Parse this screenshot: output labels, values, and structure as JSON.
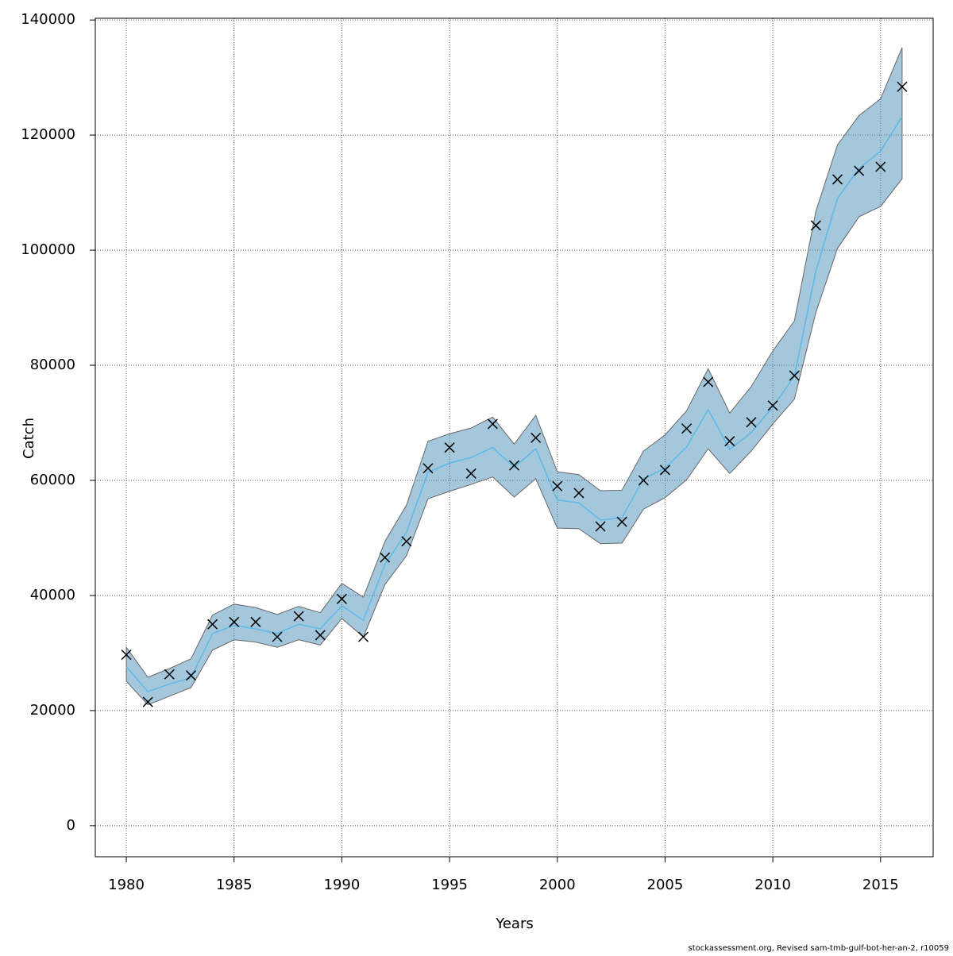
{
  "chart_data": {
    "type": "line",
    "x_label": "Years",
    "y_label": "Catch",
    "footer": "stockassessment.org, Revised  sam-tmb-gulf-bot-her-an-2, r10059",
    "x": [
      1980,
      1981,
      1982,
      1983,
      1984,
      1985,
      1986,
      1987,
      1988,
      1989,
      1990,
      1991,
      1992,
      1993,
      1994,
      1995,
      1996,
      1997,
      1998,
      1999,
      2000,
      2001,
      2002,
      2003,
      2004,
      2005,
      2006,
      2007,
      2008,
      2009,
      2010,
      2011,
      2012,
      2013,
      2014,
      2015,
      2016
    ],
    "estimate": {
      "color": "#5bb8e8",
      "values": [
        27600,
        23300,
        24600,
        25700,
        33400,
        34800,
        34200,
        33400,
        35000,
        34200,
        38200,
        35700,
        45400,
        51000,
        61400,
        63000,
        64000,
        65700,
        62300,
        65500,
        56600,
        56100,
        53100,
        53500,
        60300,
        62100,
        65800,
        72300,
        65400,
        68300,
        72800,
        78100,
        96400,
        109000,
        114200,
        117200,
        123200
      ]
    },
    "band": {
      "color": "#4a90b8",
      "upper": [
        31000,
        25800,
        27300,
        29000,
        36600,
        38500,
        37900,
        36700,
        38100,
        37000,
        42100,
        39700,
        49400,
        55700,
        66800,
        68100,
        69100,
        71000,
        66300,
        71300,
        61500,
        61000,
        58200,
        58300,
        65100,
        67900,
        72100,
        79400,
        71700,
        76300,
        82500,
        87700,
        106800,
        118300,
        123400,
        126300,
        135200
      ],
      "lower": [
        25100,
        21000,
        22500,
        24000,
        30500,
        32300,
        31900,
        31000,
        32300,
        31400,
        36000,
        32800,
        41900,
        46900,
        56800,
        58100,
        59300,
        60600,
        57100,
        60300,
        51700,
        51600,
        49000,
        49100,
        55000,
        57000,
        60100,
        65500,
        61200,
        65100,
        69800,
        74100,
        89200,
        100300,
        105800,
        107600,
        112400
      ]
    },
    "observed": {
      "color": "#000000",
      "values": [
        29700,
        21500,
        26300,
        26100,
        35000,
        35400,
        35400,
        32800,
        36400,
        33100,
        39400,
        32800,
        46600,
        49400,
        62100,
        65700,
        61200,
        69800,
        62600,
        67400,
        59000,
        57800,
        52000,
        52800,
        60000,
        61800,
        69000,
        77100,
        66800,
        70100,
        73000,
        78200,
        104300,
        112300,
        113800,
        114500,
        128400
      ]
    },
    "xlim": [
      1978.56,
      2017.44
    ],
    "ylim": [
      -5400,
      140300
    ],
    "xticks": [
      1980,
      1985,
      1990,
      1995,
      2000,
      2005,
      2010,
      2015
    ],
    "yticks": [
      0,
      20000,
      40000,
      60000,
      80000,
      100000,
      120000,
      140000
    ],
    "grid": true
  }
}
